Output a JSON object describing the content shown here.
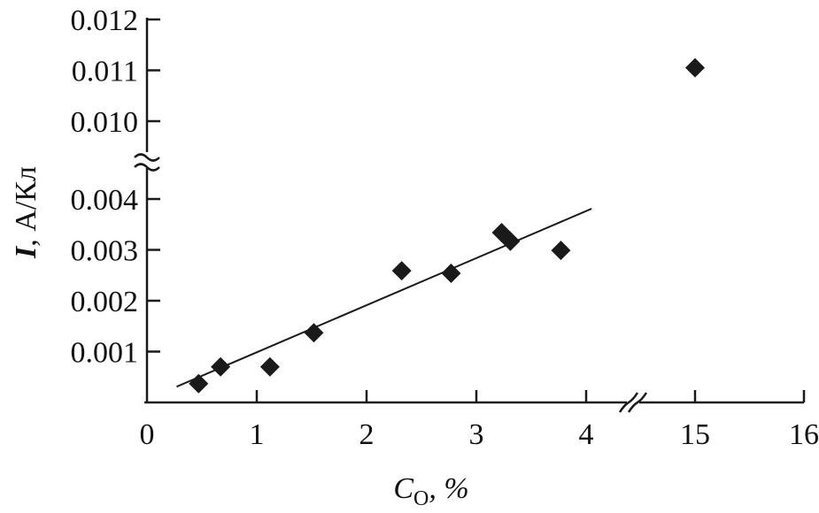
{
  "chart_data": {
    "type": "scatter",
    "title": "",
    "xlabel": "C",
    "xlabel_subscript": "O",
    "xlabel_suffix": ", %",
    "ylabel_italic": "I",
    "ylabel_rest": ", А/Кл",
    "x_axis_break": {
      "from": 4.4,
      "to": 15
    },
    "y_axis_break": {
      "from": 0.0045,
      "to": 0.0097
    },
    "xlim_lower": [
      0,
      4.4
    ],
    "xlim_upper": [
      14.4,
      16
    ],
    "ylim_lower": [
      0,
      0.0045
    ],
    "ylim_upper": [
      0.0097,
      0.012
    ],
    "x_ticks": [
      "0",
      "1",
      "2",
      "3",
      "4",
      "15",
      "16"
    ],
    "x_tick_values": [
      0,
      1,
      2,
      3,
      4,
      15,
      16
    ],
    "y_ticks": [
      "0.001",
      "0.002",
      "0.003",
      "0.004",
      "0.010",
      "0.011",
      "0.012"
    ],
    "y_tick_values": [
      0.001,
      0.002,
      0.003,
      0.004,
      0.01,
      0.011,
      0.012
    ],
    "points": [
      {
        "x": 0.47,
        "y": 0.00037
      },
      {
        "x": 0.67,
        "y": 0.0007
      },
      {
        "x": 1.12,
        "y": 0.0007
      },
      {
        "x": 1.52,
        "y": 0.00137
      },
      {
        "x": 2.32,
        "y": 0.00259
      },
      {
        "x": 2.77,
        "y": 0.00254
      },
      {
        "x": 3.23,
        "y": 0.00334
      },
      {
        "x": 3.31,
        "y": 0.00317
      },
      {
        "x": 3.77,
        "y": 0.00299
      },
      {
        "x": 15.0,
        "y": 0.01105
      }
    ],
    "fit_line": {
      "x": [
        0.27,
        4.05
      ],
      "y": [
        0.00031,
        0.00381
      ]
    },
    "marker": "diamond",
    "color": "#1a1a1a",
    "grid": false
  }
}
